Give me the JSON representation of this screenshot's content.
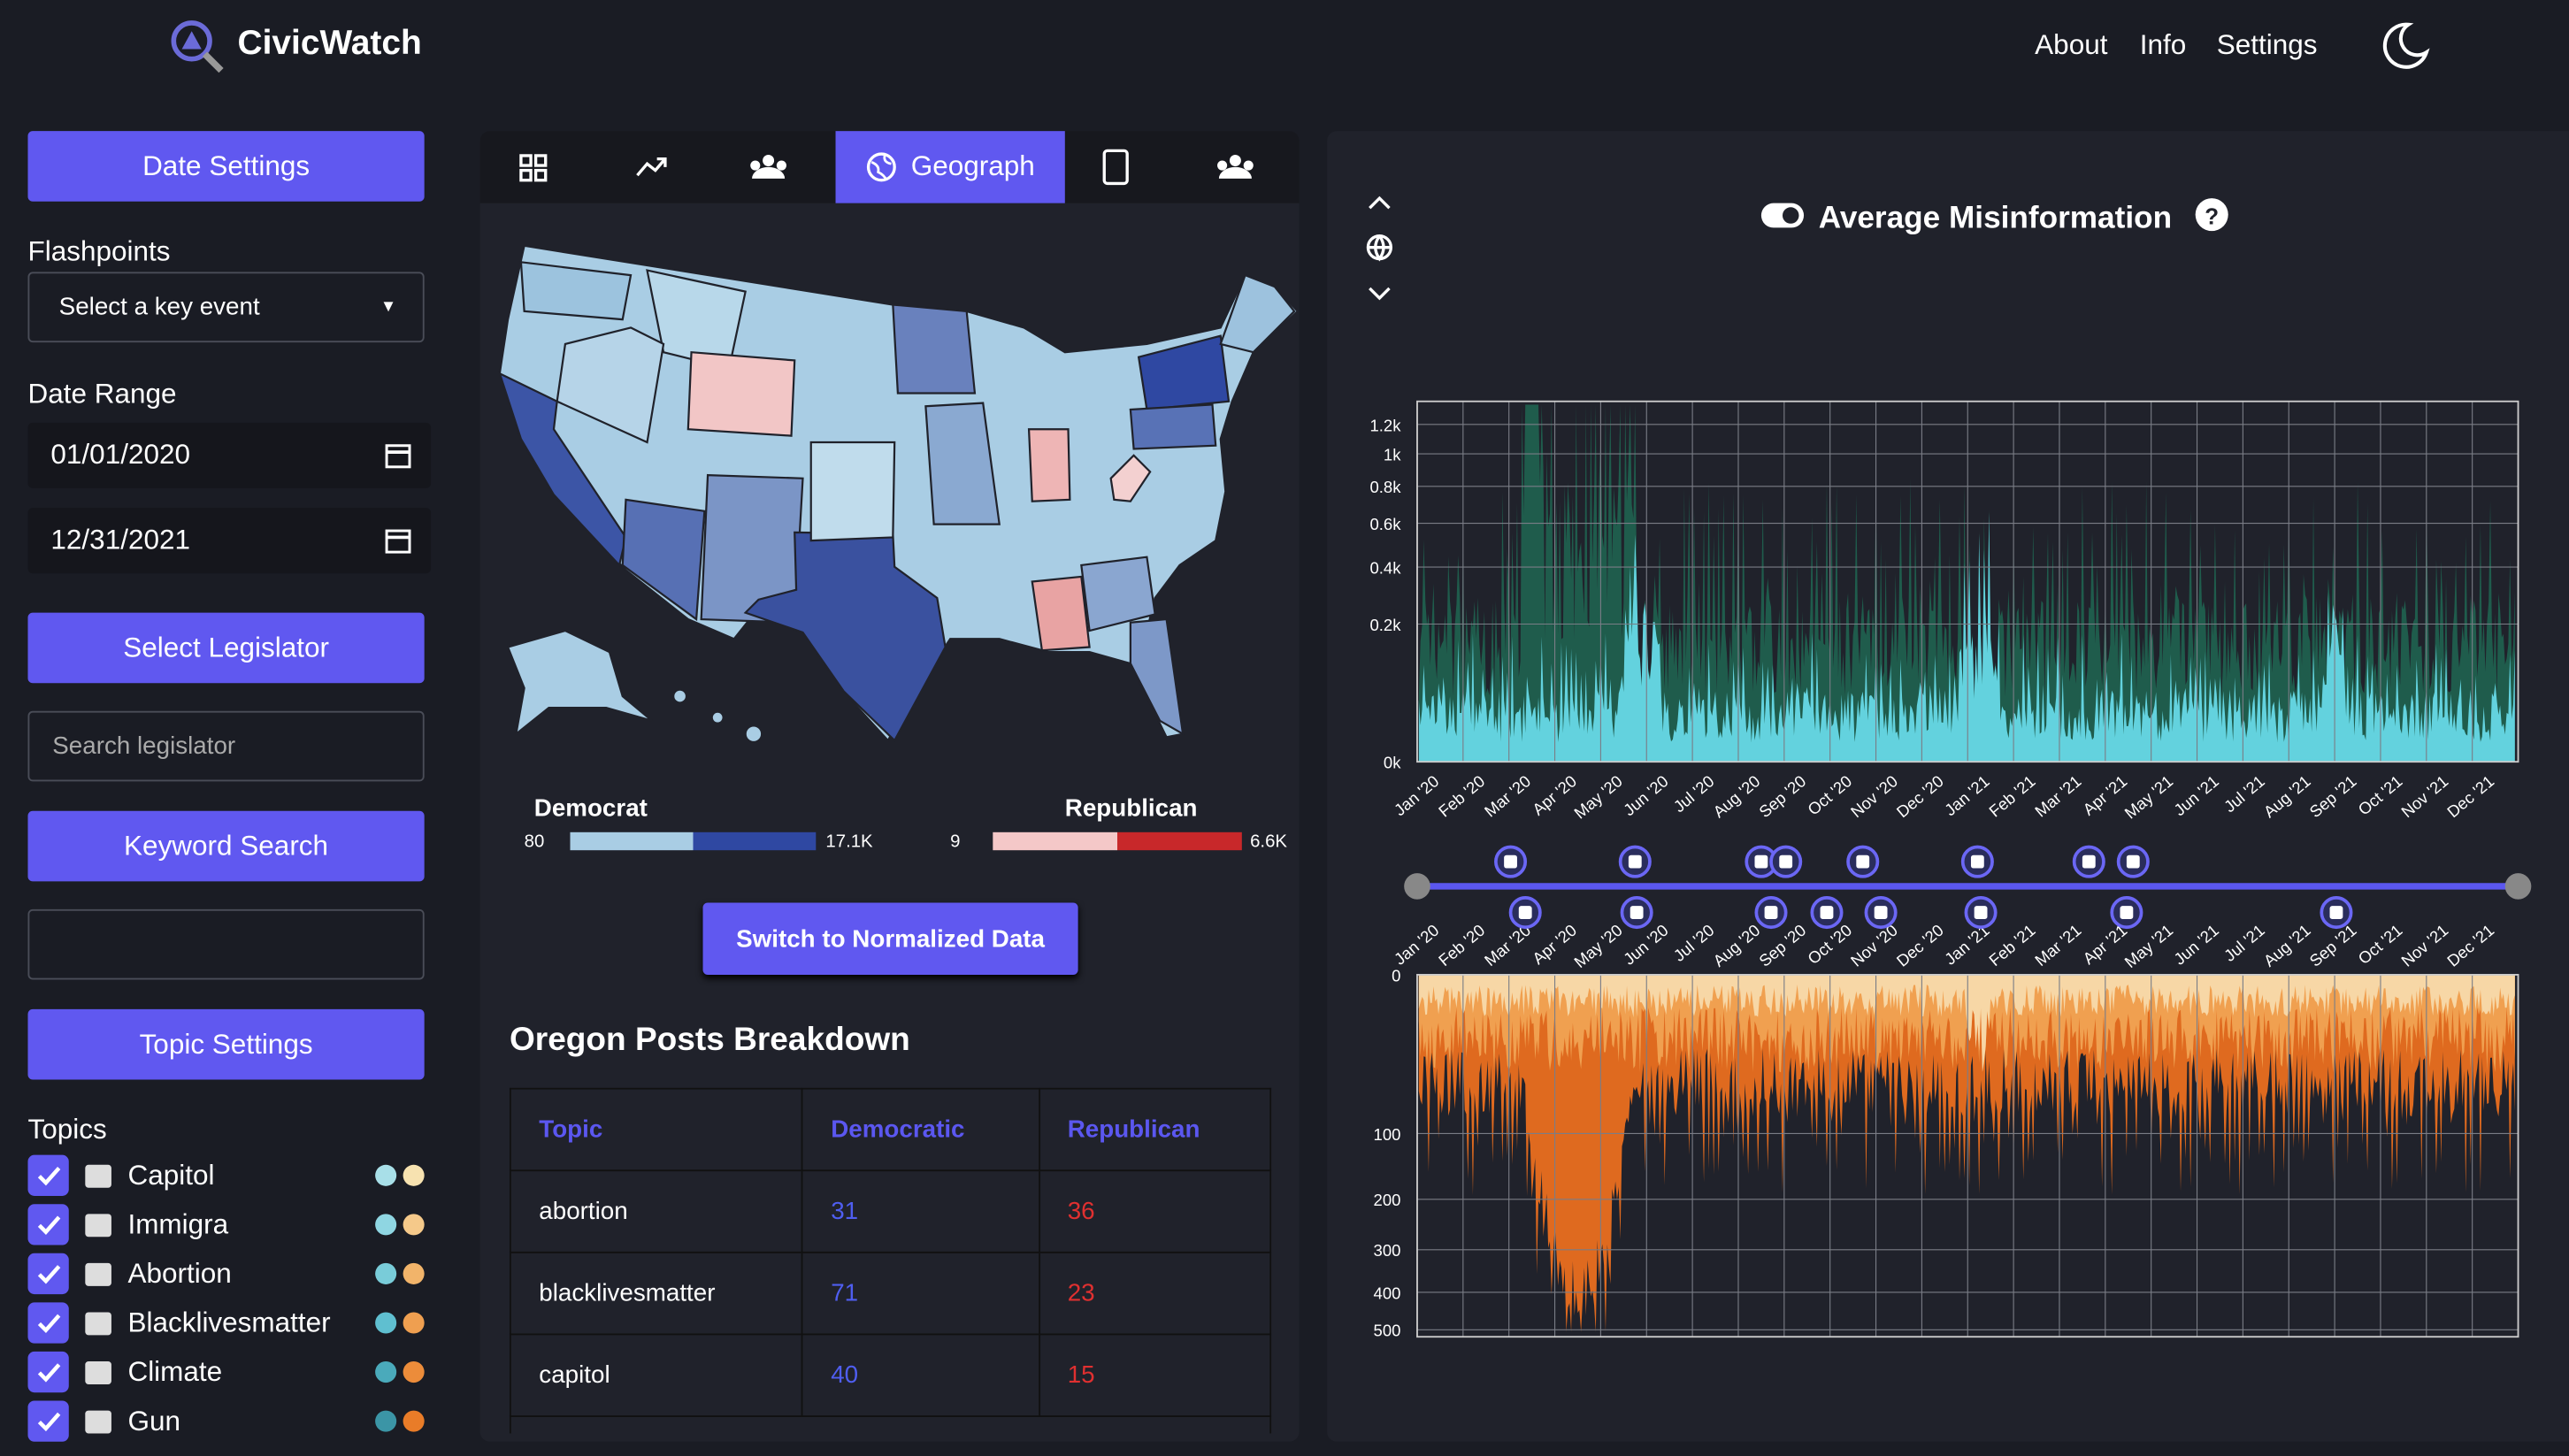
{
  "header": {
    "brand": "CivicWatch",
    "nav": [
      "About",
      "Info",
      "Settings"
    ]
  },
  "sidebar": {
    "date_settings": "Date Settings",
    "flashpoints_label": "Flashpoints",
    "flashpoints_select": "Select a key event",
    "date_range_label": "Date Range",
    "start_date": "01/01/2020",
    "end_date": "12/31/2021",
    "select_legislator": "Select Legislator",
    "search_placeholder": "Search legislator",
    "keyword_search": "Keyword Search",
    "topic_settings": "Topic Settings",
    "topics_label": "Topics",
    "topics": [
      "Capitol",
      "Immigra",
      "Abortion",
      "Blacklivesmatter",
      "Climate",
      "Gun"
    ]
  },
  "center": {
    "active_tab": "Geograph",
    "legend": {
      "democrat": {
        "label": "Democrat",
        "min": 80,
        "max": "17.1K"
      },
      "republican": {
        "label": "Republican",
        "min": 9,
        "max": "6.6K"
      }
    },
    "switch_button": "Switch to Normalized Data",
    "breakdown_title": "Oregon Posts Breakdown",
    "table": {
      "headers": [
        "Topic",
        "Democratic",
        "Republican"
      ],
      "rows": [
        [
          "abortion",
          31,
          36
        ],
        [
          "blacklivesmatter",
          71,
          23
        ],
        [
          "capitol",
          40,
          15
        ]
      ]
    }
  },
  "right": {
    "title": "Average Misinformation",
    "top_chart": {
      "yscale": "sqrt",
      "ylim": [
        0,
        1370
      ],
      "yticks": [
        {
          "value": 1200,
          "label": "1.2k"
        },
        {
          "value": 1000,
          "label": "1k"
        },
        {
          "value": 800,
          "label": "0.8k"
        },
        {
          "value": 600,
          "label": "0.6k"
        },
        {
          "value": 400,
          "label": "0.4k"
        },
        {
          "value": 200,
          "label": "0.2k"
        },
        {
          "value": 0,
          "label": "0k"
        }
      ]
    },
    "bottom_chart": {
      "yscale": "sqrt",
      "ylim": [
        0,
        520
      ],
      "yticks": [
        0,
        100,
        200,
        300,
        400,
        500
      ]
    },
    "months": [
      "Jan '20",
      "Feb '20",
      "Mar '20",
      "Apr '20",
      "May '20",
      "Jun '20",
      "Jul '20",
      "Aug '20",
      "Sep '20",
      "Oct '20",
      "Nov '20",
      "Dec '20",
      "Jan '21",
      "Feb '21",
      "Mar '21",
      "Apr '21",
      "May '21",
      "Jun '21",
      "Jul '21",
      "Aug '21",
      "Sep '21",
      "Oct '21",
      "Nov '21",
      "Dec '21"
    ]
  }
}
